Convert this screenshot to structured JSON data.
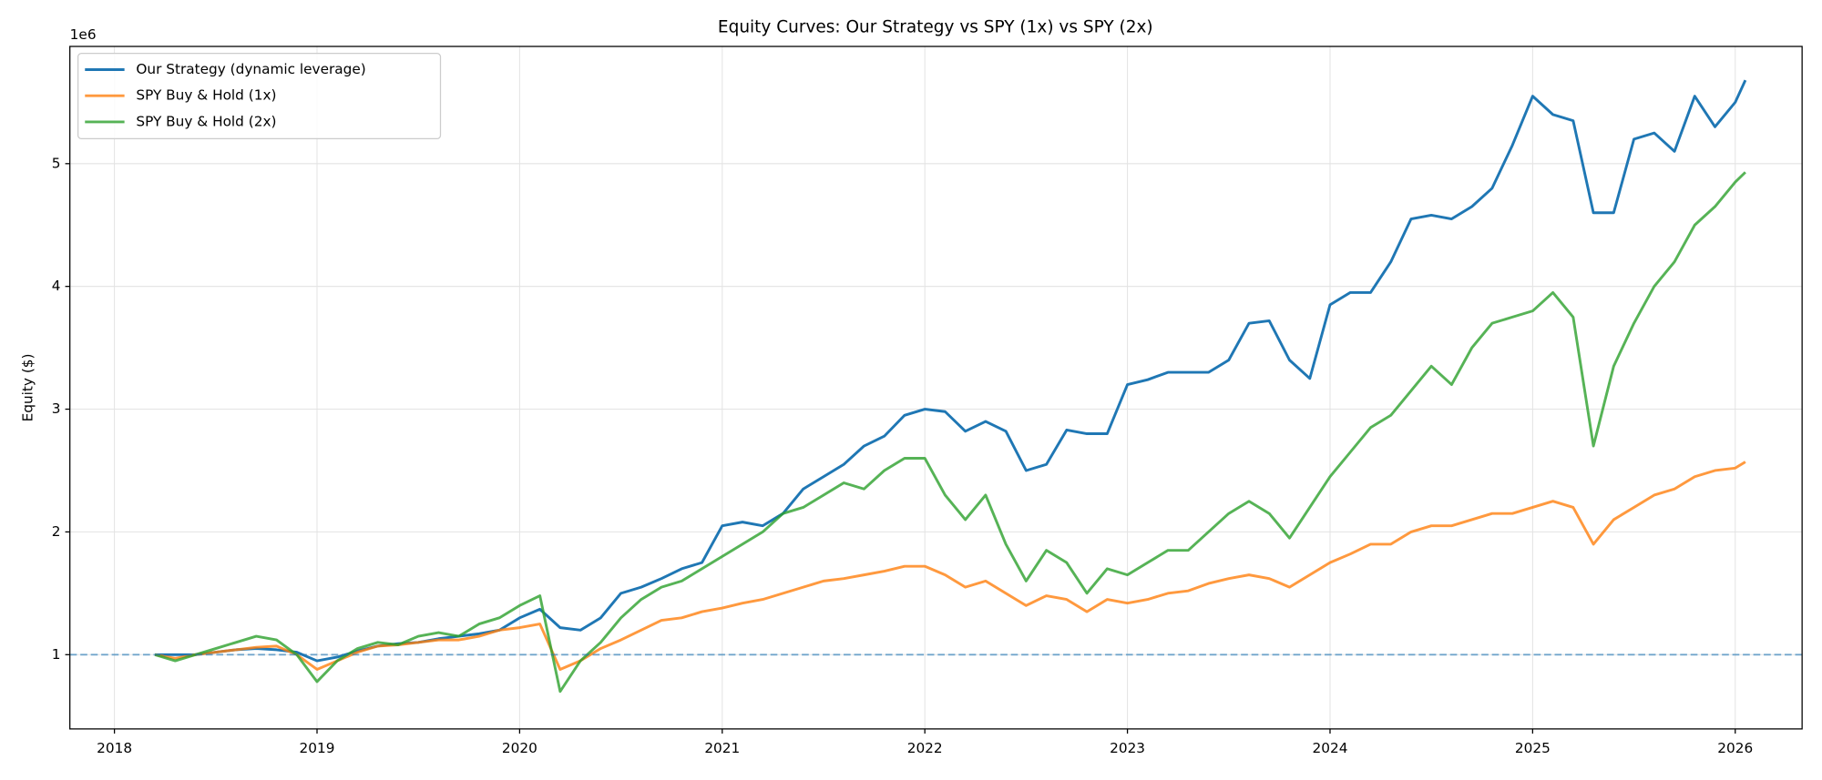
{
  "chart_data": {
    "type": "line",
    "title": "Equity Curves: Our Strategy vs SPY (1x) vs SPY (2x)",
    "y_label": "Equity ($)",
    "y_offset_label": "1e6",
    "x": [
      2018.2,
      2018.3,
      2018.4,
      2018.5,
      2018.6,
      2018.7,
      2018.8,
      2018.9,
      2019.0,
      2019.1,
      2019.2,
      2019.3,
      2019.4,
      2019.5,
      2019.6,
      2019.7,
      2019.8,
      2019.9,
      2020.0,
      2020.1,
      2020.2,
      2020.3,
      2020.4,
      2020.5,
      2020.6,
      2020.7,
      2020.8,
      2020.9,
      2021.0,
      2021.1,
      2021.2,
      2021.3,
      2021.4,
      2021.5,
      2021.6,
      2021.7,
      2021.8,
      2021.9,
      2022.0,
      2022.1,
      2022.2,
      2022.3,
      2022.4,
      2022.5,
      2022.6,
      2022.7,
      2022.8,
      2022.9,
      2023.0,
      2023.1,
      2023.2,
      2023.3,
      2023.4,
      2023.5,
      2023.6,
      2023.7,
      2023.8,
      2023.9,
      2024.0,
      2024.1,
      2024.2,
      2024.3,
      2024.4,
      2024.5,
      2024.6,
      2024.7,
      2024.8,
      2024.9,
      2025.0,
      2025.1,
      2025.2,
      2025.3,
      2025.4,
      2025.5,
      2025.6,
      2025.7,
      2025.8,
      2025.9,
      2026.0,
      2026.05
    ],
    "series": [
      {
        "name": "Our Strategy (dynamic leverage)",
        "color": "#1f77b4",
        "values": [
          1.0,
          1.0,
          1.0,
          1.02,
          1.04,
          1.05,
          1.04,
          1.02,
          0.95,
          0.98,
          1.03,
          1.07,
          1.09,
          1.1,
          1.13,
          1.15,
          1.17,
          1.2,
          1.3,
          1.37,
          1.22,
          1.2,
          1.3,
          1.5,
          1.55,
          1.62,
          1.7,
          1.75,
          2.05,
          2.08,
          2.05,
          2.15,
          2.35,
          2.45,
          2.55,
          2.7,
          2.78,
          2.95,
          3.0,
          2.98,
          2.82,
          2.9,
          2.82,
          2.5,
          2.55,
          2.83,
          2.8,
          2.8,
          3.2,
          3.24,
          3.3,
          3.3,
          3.3,
          3.4,
          3.7,
          3.72,
          3.4,
          3.25,
          3.85,
          3.95,
          3.95,
          4.2,
          4.55,
          4.58,
          4.55,
          4.65,
          4.8,
          5.15,
          5.55,
          5.4,
          5.35,
          4.6,
          4.6,
          5.2,
          5.25,
          5.1,
          5.55,
          5.3,
          5.5,
          5.68
        ]
      },
      {
        "name": "SPY Buy & Hold (1x)",
        "color": "#ff7f0e",
        "values": [
          1.0,
          0.97,
          1.0,
          1.02,
          1.04,
          1.06,
          1.07,
          1.0,
          0.88,
          0.95,
          1.02,
          1.07,
          1.08,
          1.1,
          1.12,
          1.12,
          1.15,
          1.2,
          1.22,
          1.25,
          0.88,
          0.95,
          1.05,
          1.12,
          1.2,
          1.28,
          1.3,
          1.35,
          1.38,
          1.42,
          1.45,
          1.5,
          1.55,
          1.6,
          1.62,
          1.65,
          1.68,
          1.72,
          1.72,
          1.65,
          1.55,
          1.6,
          1.5,
          1.4,
          1.48,
          1.45,
          1.35,
          1.45,
          1.42,
          1.45,
          1.5,
          1.52,
          1.58,
          1.62,
          1.65,
          1.62,
          1.55,
          1.65,
          1.75,
          1.82,
          1.9,
          1.9,
          2.0,
          2.05,
          2.05,
          2.1,
          2.15,
          2.15,
          2.2,
          2.25,
          2.2,
          1.9,
          2.1,
          2.2,
          2.3,
          2.35,
          2.45,
          2.5,
          2.52,
          2.57
        ]
      },
      {
        "name": "SPY Buy & Hold (2x)",
        "color": "#2ca02c",
        "values": [
          1.0,
          0.95,
          1.0,
          1.05,
          1.1,
          1.15,
          1.12,
          1.0,
          0.78,
          0.95,
          1.05,
          1.1,
          1.08,
          1.15,
          1.18,
          1.15,
          1.25,
          1.3,
          1.4,
          1.48,
          0.7,
          0.95,
          1.1,
          1.3,
          1.45,
          1.55,
          1.6,
          1.7,
          1.8,
          1.9,
          2.0,
          2.15,
          2.2,
          2.3,
          2.4,
          2.35,
          2.5,
          2.6,
          2.6,
          2.3,
          2.1,
          2.3,
          1.9,
          1.6,
          1.85,
          1.75,
          1.5,
          1.7,
          1.65,
          1.75,
          1.85,
          1.85,
          2.0,
          2.15,
          2.25,
          2.15,
          1.95,
          2.2,
          2.45,
          2.65,
          2.85,
          2.95,
          3.15,
          3.35,
          3.2,
          3.5,
          3.7,
          3.75,
          3.8,
          3.95,
          3.75,
          2.7,
          3.35,
          3.7,
          4.0,
          4.2,
          4.5,
          4.65,
          4.85,
          4.93
        ]
      }
    ],
    "reference_line": {
      "value": 1,
      "color": "#1f77b4"
    },
    "xlim": [
      2017.78,
      2026.33
    ],
    "xticks": [
      2018,
      2019,
      2020,
      2021,
      2022,
      2023,
      2024,
      2025,
      2026
    ],
    "ylim": [
      0.395,
      5.955
    ],
    "yticks": [
      1,
      2,
      3,
      4,
      5
    ],
    "grid": true,
    "legend": "upper-left"
  }
}
